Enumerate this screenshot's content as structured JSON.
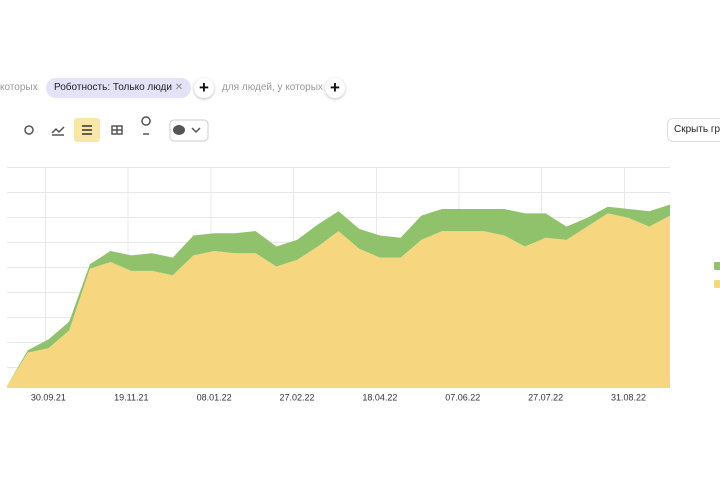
{
  "filters": {
    "prefix": "которых",
    "chip": "Роботность: Только люди",
    "segment": "для людей, у которых"
  },
  "hide_button": "Скрыть гр",
  "chart_data": {
    "type": "stacked_area",
    "categories": [
      null,
      null,
      "30.09.21",
      null,
      null,
      null,
      "19.11.21",
      null,
      null,
      null,
      "08.01.22",
      null,
      null,
      null,
      "27.02.22",
      null,
      null,
      null,
      "18.04.22",
      null,
      null,
      null,
      "07.06.22",
      null,
      null,
      null,
      "27.07.22",
      null,
      null,
      null,
      "31.08.22",
      null,
      null
    ],
    "ylim": [
      0,
      100
    ],
    "series": [
      {
        "color": "#f6d77f",
        "values": [
          1,
          16,
          18,
          26,
          54,
          57,
          53,
          53,
          51,
          60,
          62,
          61,
          61,
          55,
          58,
          64,
          71,
          63,
          59,
          59,
          67,
          71,
          71,
          71,
          69,
          64,
          68,
          67,
          73,
          79,
          77,
          73,
          78
        ]
      },
      {
        "color": "#8fc26b",
        "values": [
          0,
          1,
          4,
          4,
          2,
          5,
          7,
          8,
          8,
          9,
          8,
          9,
          10,
          9,
          9,
          10,
          9,
          9,
          10,
          9,
          11,
          10,
          10,
          10,
          12,
          15,
          11,
          6,
          4,
          3,
          4,
          7,
          5
        ]
      }
    ]
  }
}
